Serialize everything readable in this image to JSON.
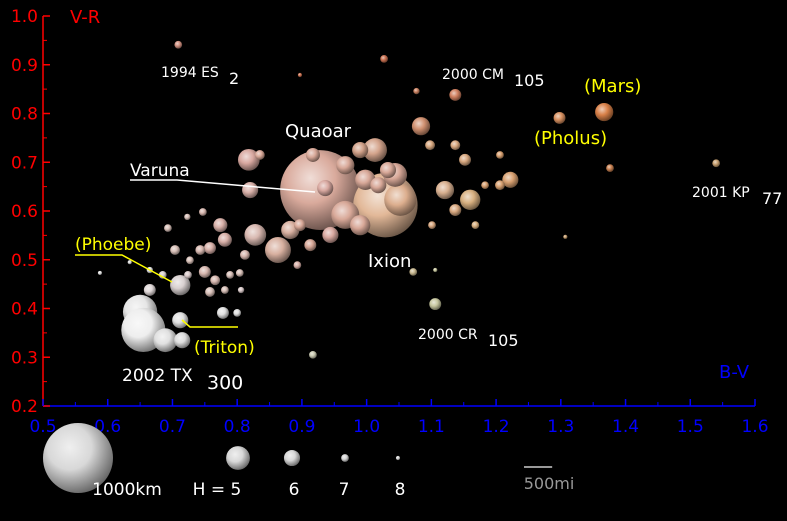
{
  "chart_data": {
    "type": "scatter",
    "x_label": "B-V",
    "y_label": "V-R",
    "x_axis_color": "#0000ff",
    "y_axis_color": "#ff0000",
    "xlim": [
      0.5,
      1.6
    ],
    "ylim": [
      0.2,
      1.0
    ],
    "xticks": [
      0.5,
      0.6,
      0.7,
      0.8,
      0.9,
      {
        "value": 1,
        "label": "1.0"
      },
      1.1,
      1.2,
      1.3,
      1.4,
      1.5,
      1.6
    ],
    "yticks": [
      0.2,
      0.3,
      0.4,
      0.5,
      0.6,
      0.7,
      0.8,
      0.9,
      {
        "value": 1,
        "label": "1.0"
      }
    ],
    "xminorticks": [
      0.55,
      0.65,
      0.75,
      0.85,
      0.95,
      1.05,
      1.15,
      1.25,
      1.35,
      1.45,
      1.55
    ],
    "yminorticks": [
      0.25,
      0.35,
      0.45,
      0.55,
      0.65,
      0.75,
      0.85,
      0.95
    ],
    "x": [
      0.928,
      1.029,
      0.65,
      0.655,
      1.052,
      0.967,
      0.863,
      0.689,
      1.013,
      1.044,
      0.818,
      0.828,
      1.16,
      0.99,
      0.998,
      0.712,
      1.084,
      1.367,
      0.967,
      1.121,
      0.882,
      0.936,
      0.99,
      1.222,
      0.82,
      0.944,
      1.018,
      1.033,
      0.712,
      0.715,
      0.917,
      0.774,
      0.781,
      1.137,
      1.298,
      1.106,
      1.152,
      1.137,
      0.897,
      0.913,
      0.758,
      0.75,
      0.665,
      0.778,
      0.835,
      1.098,
      1.137,
      1.206,
      0.743,
      0.704,
      0.766,
      0.758,
      0.812,
      0.709,
      1.027,
      1.376,
      1.54,
      1.072,
      0.917,
      1.168,
      1.101,
      1.183,
      1.206,
      0.893,
      0.727,
      0.747,
      0.693,
      0.789,
      0.781,
      0.804,
      0.685,
      0.724,
      0.8,
      1.077,
      0.723,
      0.806,
      0.665,
      0.897,
      1.307,
      1.106,
      0.588,
      0.634
    ],
    "values": [
      0.643,
      0.612,
      0.393,
      0.356,
      0.623,
      0.592,
      0.52,
      0.335,
      0.725,
      0.674,
      0.705,
      0.551,
      0.623,
      0.571,
      0.664,
      0.448,
      0.774,
      0.803,
      0.694,
      0.643,
      0.561,
      0.647,
      0.725,
      0.664,
      0.643,
      0.551,
      0.653,
      0.684,
      0.376,
      0.335,
      0.715,
      0.571,
      0.541,
      0.838,
      0.791,
      0.409,
      0.705,
      0.602,
      0.571,
      0.53,
      0.524,
      0.475,
      0.438,
      0.391,
      0.715,
      0.735,
      0.735,
      0.653,
      0.52,
      0.52,
      0.458,
      0.434,
      0.51,
      0.941,
      0.912,
      0.688,
      0.698,
      0.475,
      0.305,
      0.571,
      0.571,
      0.653,
      0.715,
      0.489,
      0.499,
      0.598,
      0.565,
      0.469,
      0.438,
      0.473,
      0.469,
      0.469,
      0.391,
      0.846,
      0.588,
      0.438,
      0.479,
      0.879,
      0.547,
      0.479,
      0.473,
      0.495
    ],
    "sizes": [
      1140,
      920,
      490,
      630,
      460,
      400,
      370,
      340,
      340,
      340,
      310,
      310,
      290,
      290,
      290,
      290,
      260,
      260,
      260,
      260,
      260,
      230,
      230,
      230,
      230,
      230,
      230,
      230,
      230,
      230,
      200,
      200,
      200,
      170,
      170,
      170,
      170,
      170,
      170,
      170,
      170,
      170,
      170,
      170,
      140,
      140,
      140,
      140,
      140,
      140,
      140,
      140,
      140,
      110,
      110,
      110,
      110,
      110,
      110,
      110,
      110,
      110,
      110,
      110,
      110,
      110,
      110,
      110,
      110,
      110,
      110,
      110,
      110,
      90,
      90,
      90,
      90,
      60,
      60,
      60,
      60,
      60
    ],
    "colors": [
      "#d9aa9c",
      "#e2b898",
      "#e6e6e6",
      "#eeeeee",
      "#dcae8e",
      "#d8a898",
      "#d8b0a0",
      "#e0e0e0",
      "#d4a48c",
      "#d8a898",
      "#d8a8a0",
      "#d8b8b0",
      "#d8b080",
      "#d8a898",
      "#d8a898",
      "#d8d0d0",
      "#d09070",
      "#d88048",
      "#d8a898",
      "#d8b090",
      "#d8b0a0",
      "#d8a8a0",
      "#d0a088",
      "#d8a070",
      "#d8b0a8",
      "#d8a8a0",
      "#d8a898",
      "#d8a898",
      "#e0e0e0",
      "#dddddd",
      "#d8a898",
      "#d8b0a8",
      "#d8b0a8",
      "#d08060",
      "#d89060",
      "#c8c8a0",
      "#d8a880",
      "#d8a880",
      "#d8a898",
      "#d8a898",
      "#d8b0a8",
      "#d8b8b0",
      "#e0d8d8",
      "#e0e0e0",
      "#d8a898",
      "#d8a880",
      "#d8a880",
      "#d8a070",
      "#d8b8b0",
      "#d8c0b8",
      "#d8b8b0",
      "#d8c0b8",
      "#d8b8b0",
      "#d09080",
      "#c87050",
      "#c88050",
      "#c8a070",
      "#c8b890",
      "#c8c8b0",
      "#d8b080",
      "#d8a880",
      "#d8a070",
      "#d8a070",
      "#d8b0a8",
      "#d8c0b8",
      "#d8b8b0",
      "#d8c0b8",
      "#d8c0b8",
      "#d8c0b8",
      "#d8c0b8",
      "#d8d0d0",
      "#d8c8c8",
      "#e0e0e0",
      "#c88060",
      "#d8c0b8",
      "#d8c8c8",
      "#e0e0e0",
      "#c87050",
      "#c8a070",
      "#c8c8a0",
      "#e0e0e0",
      "#e0e0e0"
    ],
    "annotations": [
      {
        "text": "1994 ES",
        "sub": "2",
        "color": "#ffffff"
      },
      {
        "text": "2000 CM",
        "sub": "105",
        "color": "#ffffff"
      },
      {
        "text": "(Mars)",
        "color": "#ffff00"
      },
      {
        "text": "(Pholus)",
        "color": "#ffff00"
      },
      {
        "text": "Quaoar",
        "color": "#ffffff"
      },
      {
        "text": "Varuna",
        "color": "#ffffff"
      },
      {
        "text": "2001 KP",
        "sub": "77",
        "color": "#ffffff"
      },
      {
        "text": "(Phoebe)",
        "color": "#ffff00"
      },
      {
        "text": "Ixion",
        "color": "#ffffff"
      },
      {
        "text": "2000 CR",
        "sub": "105",
        "color": "#ffffff"
      },
      {
        "text": "(Triton)",
        "color": "#ffff00"
      },
      {
        "text": "2002 TX",
        "sub": "300",
        "color": "#ffffff"
      }
    ],
    "size_legend": {
      "items": [
        {
          "label": "1000km",
          "size": 1000
        },
        {
          "label": "H = 5",
          "size": 340
        },
        {
          "label": "6",
          "size": 230
        },
        {
          "label": "7",
          "size": 110
        },
        {
          "label": "8",
          "size": 60
        }
      ],
      "scale_bar": {
        "label": "500mi",
        "size": 805
      }
    }
  }
}
